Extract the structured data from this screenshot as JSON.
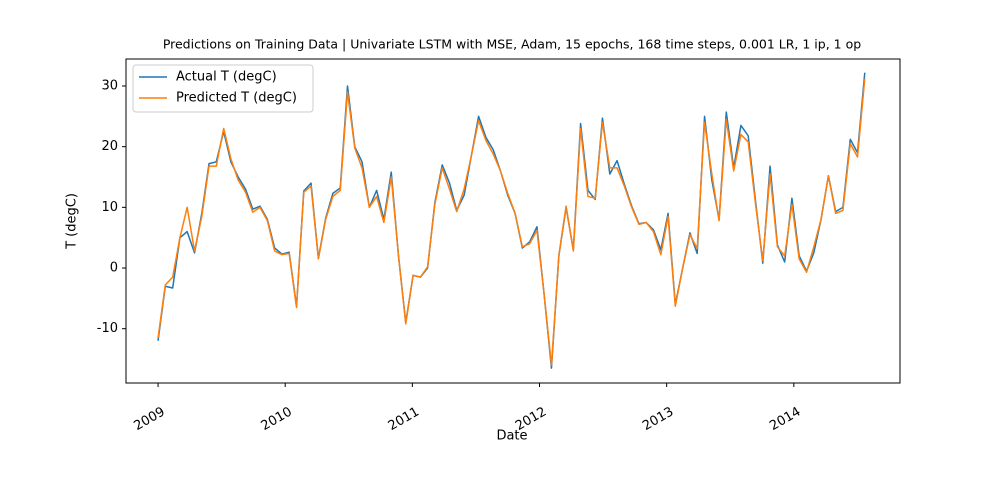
{
  "chart_data": {
    "type": "line",
    "title": "Predictions on Training Data  | Univariate LSTM with MSE, Adam, 15 epochs, 168 time steps, 0.001 LR, 1 ip, 1 op",
    "xlabel": "Date",
    "ylabel": "T (degC)",
    "legend": "upper left",
    "grid": false,
    "xlim": [
      2008.748,
      2014.835
    ],
    "ylim": [
      -18.95,
      34.45
    ],
    "xticks": [
      2009,
      2010,
      2011,
      2012,
      2013,
      2014
    ],
    "yticks": [
      -10,
      0,
      10,
      20,
      30
    ],
    "x": [
      2009,
      2009.057,
      2009.115,
      2009.172,
      2009.229,
      2009.287,
      2009.344,
      2009.401,
      2009.458,
      2009.516,
      2009.573,
      2009.63,
      2009.688,
      2009.745,
      2009.802,
      2009.86,
      2009.917,
      2009.974,
      2010.031,
      2010.089,
      2010.146,
      2010.203,
      2010.261,
      2010.318,
      2010.375,
      2010.433,
      2010.49,
      2010.547,
      2010.604,
      2010.662,
      2010.719,
      2010.776,
      2010.834,
      2010.891,
      2010.948,
      2011.006,
      2011.063,
      2011.12,
      2011.177,
      2011.235,
      2011.292,
      2011.349,
      2011.407,
      2011.464,
      2011.521,
      2011.579,
      2011.636,
      2011.693,
      2011.75,
      2011.808,
      2011.865,
      2011.922,
      2011.98,
      2012.037,
      2012.094,
      2012.152,
      2012.209,
      2012.266,
      2012.323,
      2012.381,
      2012.438,
      2012.495,
      2012.553,
      2012.61,
      2012.667,
      2012.725,
      2012.782,
      2012.839,
      2012.896,
      2012.954,
      2013.011,
      2013.068,
      2013.126,
      2013.183,
      2013.24,
      2013.298,
      2013.355,
      2013.412,
      2013.469,
      2013.527,
      2013.584,
      2013.641,
      2013.699,
      2013.756,
      2013.813,
      2013.871,
      2013.928,
      2013.985,
      2014.042,
      2014.1,
      2014.157,
      2014.214,
      2014.272,
      2014.329,
      2014.386,
      2014.444,
      2014.501,
      2014.558
    ],
    "series": [
      {
        "name": "Actual T (degC)",
        "color": "#1f77b4",
        "values": [
          -12,
          -3,
          -3.3,
          5,
          6,
          2.5,
          9,
          17.2,
          17.5,
          22.5,
          17.5,
          15,
          13,
          9.7,
          10.2,
          8,
          3.3,
          2.3,
          2.6,
          -6.3,
          12.7,
          14,
          1.6,
          8.2,
          12.3,
          13.2,
          30,
          20,
          17.5,
          10,
          12.8,
          8,
          15.8,
          2,
          -9,
          -1.2,
          -1.5,
          0,
          10.8,
          17,
          14,
          9.5,
          12,
          18.5,
          25,
          21.5,
          19.5,
          16,
          12,
          9,
          3.3,
          4.3,
          6.8,
          -4.5,
          -16.5,
          2,
          10,
          3,
          23.8,
          12.8,
          11.3,
          24.7,
          15.5,
          17.7,
          13.8,
          10.2,
          7.3,
          7.5,
          6.3,
          3,
          9,
          -6,
          0,
          5.8,
          2.4,
          25,
          14.5,
          8,
          25.7,
          16.5,
          23.5,
          21.8,
          11,
          0.8,
          16.8,
          3.8,
          1,
          11.5,
          2,
          -0.5,
          2.5,
          8,
          15.2,
          9.3,
          10,
          21.2,
          19,
          32.2
        ]
      },
      {
        "name": "Predicted T (degC)",
        "color": "#ff7f0e",
        "values": [
          -11.5,
          -2.8,
          -1.5,
          5,
          10,
          2.8,
          8.5,
          16.8,
          16.8,
          23,
          18,
          14.5,
          12.5,
          9.2,
          10,
          7.8,
          2.8,
          2.2,
          2.4,
          -6.5,
          12.5,
          13.5,
          1.5,
          8,
          11.8,
          12.8,
          29,
          19.8,
          16.5,
          10,
          11.8,
          7.5,
          15,
          2,
          -9.2,
          -1.2,
          -1.5,
          0.2,
          10.5,
          16.5,
          13,
          9.3,
          13,
          18.5,
          24.3,
          21,
          18.8,
          16,
          12.3,
          9,
          3.5,
          4,
          6.2,
          -4.5,
          -16,
          2,
          10.2,
          2.8,
          23,
          11.8,
          11.5,
          24,
          16.5,
          16.5,
          13.5,
          10,
          7.2,
          7.5,
          6,
          2.2,
          8.5,
          -6.3,
          0,
          5.5,
          3.2,
          24,
          15.5,
          7.8,
          24.5,
          16,
          22,
          20.8,
          10.5,
          1.2,
          15.5,
          3.5,
          2,
          10.5,
          1.5,
          -0.7,
          3.5,
          8,
          15.2,
          9,
          9.5,
          20.5,
          18.3,
          31.2
        ]
      }
    ]
  }
}
